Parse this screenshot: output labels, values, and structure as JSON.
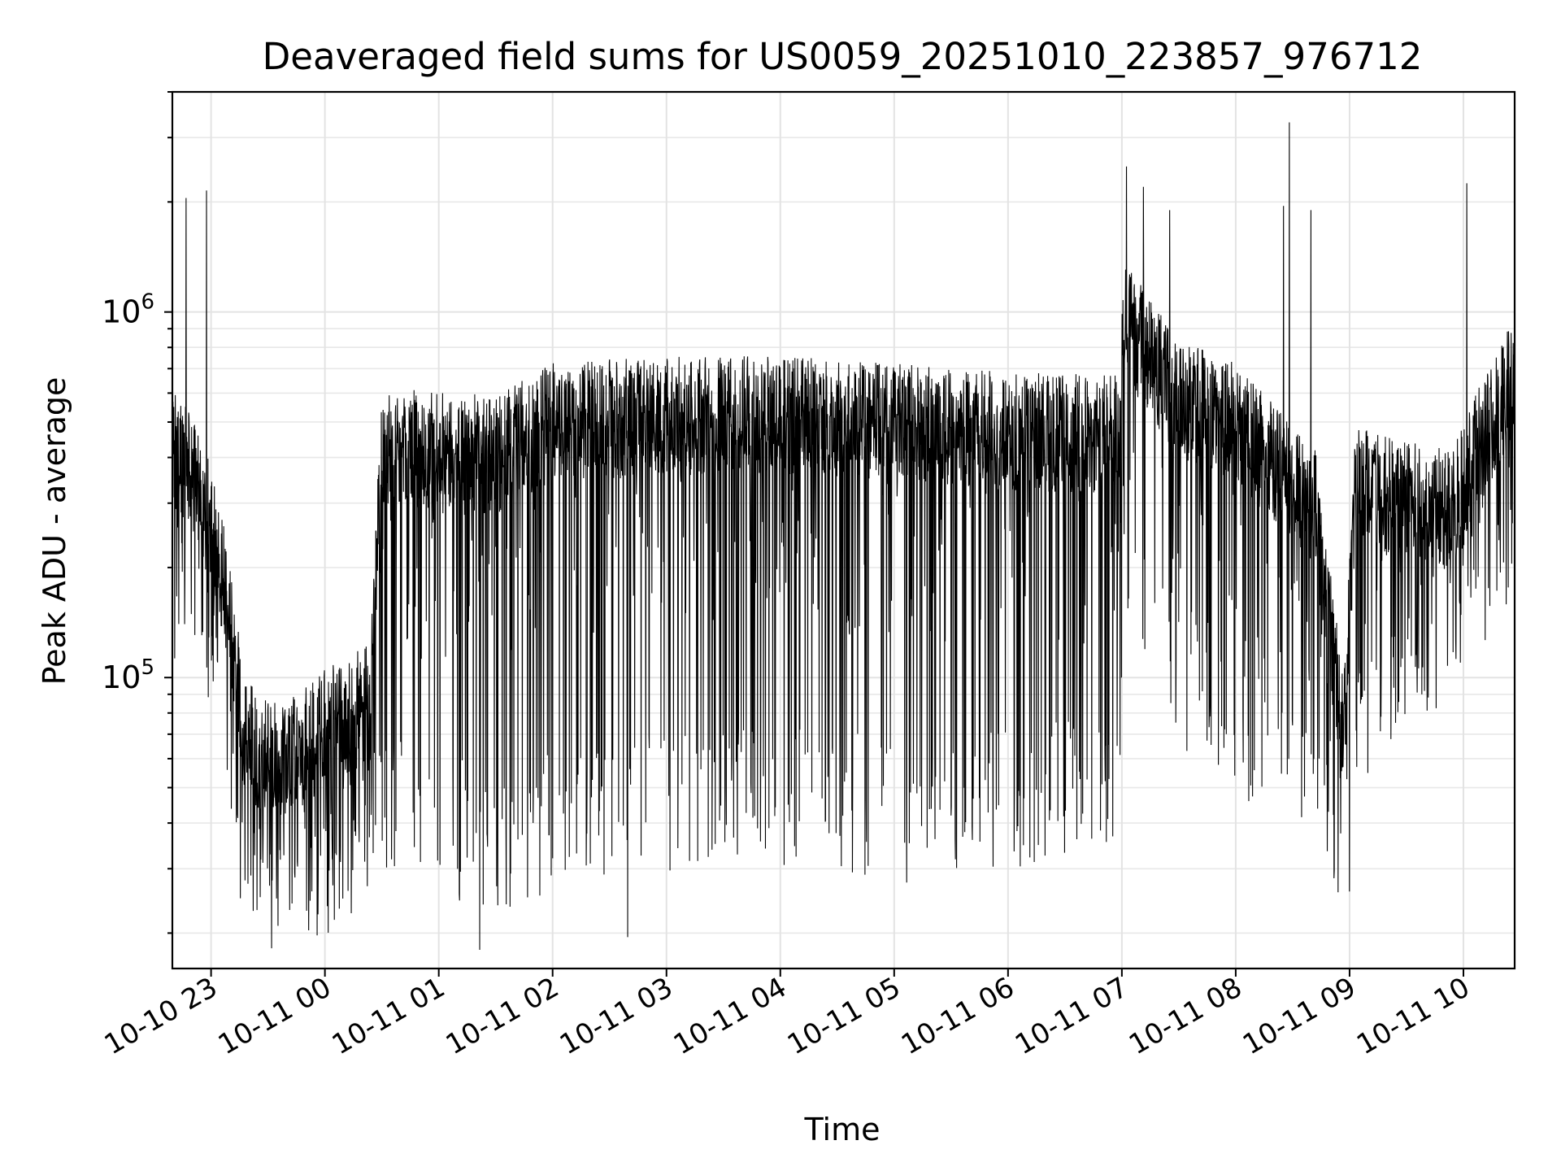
{
  "chart_data": {
    "type": "line",
    "title": "Deaveraged field sums for US0059_20251010_223857_976712",
    "xlabel": "Time",
    "ylabel": "Peak ADU - average",
    "yscale": "log",
    "ylim": [
      16000,
      4000000
    ],
    "xlim_hours": [
      -0.34,
      11.45
    ],
    "grid": true,
    "line_color": "#000000",
    "x_ticks": [
      {
        "label": "10-10 23",
        "hour": 0
      },
      {
        "label": "10-11 00",
        "hour": 1
      },
      {
        "label": "10-11 01",
        "hour": 2
      },
      {
        "label": "10-11 02",
        "hour": 3
      },
      {
        "label": "10-11 03",
        "hour": 4
      },
      {
        "label": "10-11 04",
        "hour": 5
      },
      {
        "label": "10-11 05",
        "hour": 6
      },
      {
        "label": "10-11 06",
        "hour": 7
      },
      {
        "label": "10-11 07",
        "hour": 8
      },
      {
        "label": "10-11 08",
        "hour": 9
      },
      {
        "label": "10-11 09",
        "hour": 10
      },
      {
        "label": "10-11 10",
        "hour": 11
      }
    ],
    "y_ticks": [
      {
        "base": "10",
        "exponent": "5",
        "value": 100000
      },
      {
        "base": "10",
        "exponent": "6",
        "value": 1000000
      }
    ],
    "series": [
      {
        "name": "Peak ADU - average",
        "baseline_envelope": [
          {
            "hour": -0.34,
            "typical": 450000,
            "low": 150000
          },
          {
            "hour": -0.1,
            "typical": 350000,
            "low": 130000
          },
          {
            "hour": 0.1,
            "typical": 200000,
            "low": 95000
          },
          {
            "hour": 0.3,
            "typical": 70000,
            "low": 30000
          },
          {
            "hour": 0.6,
            "typical": 60000,
            "low": 28000
          },
          {
            "hour": 1.0,
            "typical": 75000,
            "low": 30000
          },
          {
            "hour": 1.4,
            "typical": 90000,
            "low": 32000
          },
          {
            "hour": 1.5,
            "typical": 450000,
            "low": 40000
          },
          {
            "hour": 2.5,
            "typical": 420000,
            "low": 30000
          },
          {
            "hour": 3.0,
            "typical": 520000,
            "low": 35000
          },
          {
            "hour": 4.0,
            "typical": 540000,
            "low": 40000
          },
          {
            "hour": 5.0,
            "typical": 540000,
            "low": 40000
          },
          {
            "hour": 6.0,
            "typical": 520000,
            "low": 38000
          },
          {
            "hour": 7.0,
            "typical": 490000,
            "low": 40000
          },
          {
            "hour": 7.98,
            "typical": 480000,
            "low": 45000
          },
          {
            "hour": 8.02,
            "typical": 1000000,
            "low": 180000
          },
          {
            "hour": 8.5,
            "typical": 600000,
            "low": 90000
          },
          {
            "hour": 9.0,
            "typical": 520000,
            "low": 60000
          },
          {
            "hour": 9.7,
            "typical": 300000,
            "low": 55000
          },
          {
            "hour": 9.95,
            "typical": 70000,
            "low": 30000
          },
          {
            "hour": 10.05,
            "typical": 350000,
            "low": 60000
          },
          {
            "hour": 10.9,
            "typical": 300000,
            "low": 130000
          },
          {
            "hour": 11.1,
            "typical": 420000,
            "low": 180000
          },
          {
            "hour": 11.45,
            "typical": 700000,
            "low": 250000
          }
        ],
        "peaks": [
          {
            "hour": -0.04,
            "value": 2150000
          },
          {
            "hour": -0.22,
            "value": 2050000
          },
          {
            "hour": 8.04,
            "value": 2500000
          },
          {
            "hour": 8.19,
            "value": 2200000
          },
          {
            "hour": 8.42,
            "value": 1900000
          },
          {
            "hour": 9.42,
            "value": 1950000
          },
          {
            "hour": 9.47,
            "value": 3300000
          },
          {
            "hour": 9.66,
            "value": 1900000
          },
          {
            "hour": 11.03,
            "value": 2250000
          }
        ],
        "troughs": [
          {
            "hour": 0.37,
            "value": 23000
          },
          {
            "hour": 2.36,
            "value": 18000
          },
          {
            "hour": 3.66,
            "value": 19500
          },
          {
            "hour": 6.11,
            "value": 27500
          },
          {
            "hour": 10.0,
            "value": 26000
          }
        ]
      }
    ]
  }
}
